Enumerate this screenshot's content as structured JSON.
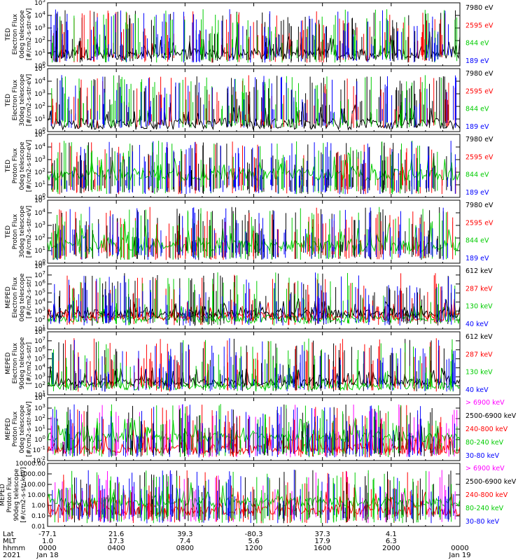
{
  "chart_data": {
    "type": "line",
    "panels": [
      {
        "ylabel": [
          "TED",
          "Electron Flux",
          "0deg telescope",
          "[#/cm2-s-str-eV]"
        ],
        "y_ticks": [
          "10^0",
          "10^1",
          "10^2",
          "10^3",
          "10^4",
          "10^5"
        ],
        "log_min": 0,
        "log_max": 5,
        "channels": [
          {
            "label": "7980 eV",
            "color": "#000000"
          },
          {
            "label": "2595 eV",
            "color": "#ff0000"
          },
          {
            "label": "844 eV",
            "color": "#00cc00"
          },
          {
            "label": "189 eV",
            "color": "#0000ff"
          }
        ],
        "baseline": [
          {
            "ch": 0,
            "level": 0.9
          }
        ],
        "spikes": 0
      },
      {
        "ylabel": [
          "TED",
          "Electron Flux",
          "30deg telescope",
          "[#/cm2-s-str-eV]"
        ],
        "y_ticks": [
          "10^0",
          "10^1",
          "10^2",
          "10^3",
          "10^4",
          "10^5"
        ],
        "log_min": 0,
        "log_max": 5,
        "channels": [
          {
            "label": "7980 eV",
            "color": "#000000"
          },
          {
            "label": "2595 eV",
            "color": "#ff0000"
          },
          {
            "label": "844 eV",
            "color": "#00cc00"
          },
          {
            "label": "189 eV",
            "color": "#0000ff"
          }
        ],
        "baseline": [
          {
            "ch": 0,
            "level": 0.6
          }
        ],
        "spikes": 0
      },
      {
        "ylabel": [
          "TED",
          "Proton Flux",
          "0deg telescope",
          "[#/cm2-s-str-eV]"
        ],
        "y_ticks": [
          "10^0",
          "10^1",
          "10^2",
          "10^3",
          "10^4",
          "10^5"
        ],
        "log_min": 0,
        "log_max": 5,
        "channels": [
          {
            "label": "7980 eV",
            "color": "#000000"
          },
          {
            "label": "2595 eV",
            "color": "#ff0000"
          },
          {
            "label": "844 eV",
            "color": "#00cc00"
          },
          {
            "label": "189 eV",
            "color": "#0000ff"
          }
        ],
        "baseline": [
          {
            "ch": 2,
            "level": 1.8
          }
        ],
        "spikes": 2
      },
      {
        "ylabel": [
          "TED",
          "Proton Flux",
          "30deg telescope",
          "[#/cm2-s-str-eV]"
        ],
        "y_ticks": [
          "10^0",
          "10^1",
          "10^2",
          "10^3",
          "10^4",
          "10^5"
        ],
        "log_min": 0,
        "log_max": 5,
        "channels": [
          {
            "label": "7980 eV",
            "color": "#000000"
          },
          {
            "label": "2595 eV",
            "color": "#ff0000"
          },
          {
            "label": "844 eV",
            "color": "#00cc00"
          },
          {
            "label": "189 eV",
            "color": "#0000ff"
          }
        ],
        "baseline": [
          {
            "ch": 2,
            "level": 1.4
          }
        ],
        "spikes": 2
      },
      {
        "ylabel": [
          "MEPED",
          "Electron Flux",
          "0deg telescope",
          "[#/cm2-s-str]"
        ],
        "y_ticks": [
          "10^1",
          "10^2",
          "10^3",
          "10^4",
          "10^5",
          "10^6",
          "10^7",
          "10^8"
        ],
        "log_min": 1,
        "log_max": 8,
        "channels": [
          {
            "label": "612 keV",
            "color": "#000000"
          },
          {
            "label": "287 keV",
            "color": "#ff0000"
          },
          {
            "label": "130 keV",
            "color": "#00cc00"
          },
          {
            "label": "40 keV",
            "color": "#0000ff"
          }
        ],
        "baseline": [
          {
            "ch": 2,
            "level": 2.1
          },
          {
            "ch": 1,
            "level": 2.4
          },
          {
            "ch": 0,
            "level": 2.7
          }
        ],
        "spikes": 3
      },
      {
        "ylabel": [
          "MEPED",
          "Electron Flux",
          "90deg telescope",
          "[#/cm2-s-str]"
        ],
        "y_ticks": [
          "10^1",
          "10^2",
          "10^3",
          "10^4",
          "10^5",
          "10^6",
          "10^7",
          "10^8"
        ],
        "log_min": 1,
        "log_max": 8,
        "channels": [
          {
            "label": "612 keV",
            "color": "#000000"
          },
          {
            "label": "287 keV",
            "color": "#ff0000"
          },
          {
            "label": "130 keV",
            "color": "#00cc00"
          },
          {
            "label": "40 keV",
            "color": "#0000ff"
          }
        ],
        "baseline": [
          {
            "ch": 2,
            "level": 2.0
          },
          {
            "ch": 0,
            "level": 2.4
          }
        ],
        "spikes": 3
      },
      {
        "ylabel": [
          "MEPED",
          "Proton Flux",
          "0deg telescope",
          "[#/cm2-s-str-keV]"
        ],
        "y_ticks": [
          "10^-2",
          "10^-1",
          "10^0",
          "10^1",
          "10^2",
          "10^3",
          "10^4"
        ],
        "log_min": -2,
        "log_max": 4,
        "channels": [
          {
            "label": "> 6900 keV",
            "color": "#ff00ff"
          },
          {
            "label": "2500-6900 keV",
            "color": "#000000"
          },
          {
            "label": "240-800 keV",
            "color": "#ff0000"
          },
          {
            "label": "80-240 keV",
            "color": "#00cc00"
          },
          {
            "label": "30-80 keV",
            "color": "#0000ff"
          }
        ],
        "baseline": [
          {
            "ch": 3,
            "level": 0.2
          },
          {
            "ch": 2,
            "level": -0.9
          }
        ],
        "spikes": 4
      },
      {
        "ylabel": [
          "MEPED",
          "Proton Flux",
          "90deg telescope",
          "[#/cm2-s-str-keV]"
        ],
        "y_ticks": [
          "0.01",
          "0.10",
          "1.00",
          "10.00",
          "100.00",
          "1000.00",
          "10000.00"
        ],
        "log_min": -2,
        "log_max": 4,
        "channels": [
          {
            "label": "> 6900 keV",
            "color": "#ff00ff"
          },
          {
            "label": "2500-6900 keV",
            "color": "#000000"
          },
          {
            "label": "240-800 keV",
            "color": "#ff0000"
          },
          {
            "label": "80-240 keV",
            "color": "#00cc00"
          },
          {
            "label": "30-80 keV",
            "color": "#0000ff"
          }
        ],
        "baseline": [
          {
            "ch": 3,
            "level": 0.3
          },
          {
            "ch": 2,
            "level": -0.5
          }
        ],
        "spikes": 4
      }
    ],
    "x_axis": {
      "row_labels": [
        "Lat",
        "MLT",
        "hhmm",
        "2021"
      ],
      "ticks": [
        {
          "lat": "-77.1",
          "mlt": "1.0",
          "hhmm": "0000",
          "date": "Jan 18"
        },
        {
          "lat": "21.6",
          "mlt": "17.3",
          "hhmm": "0400",
          "date": ""
        },
        {
          "lat": "39.3",
          "mlt": "7.4",
          "hhmm": "0800",
          "date": ""
        },
        {
          "lat": "-80.3",
          "mlt": "5.6",
          "hhmm": "1200",
          "date": ""
        },
        {
          "lat": "37.3",
          "mlt": "17.9",
          "hhmm": "1600",
          "date": ""
        },
        {
          "lat": "4.1",
          "mlt": "6.3",
          "hhmm": "2000",
          "date": ""
        },
        {
          "lat": "",
          "mlt": "",
          "hhmm": "0000",
          "date": "Jan 19"
        }
      ]
    }
  }
}
